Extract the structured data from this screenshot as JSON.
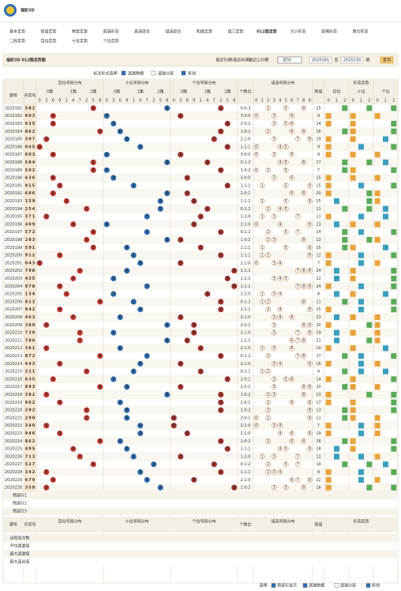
{
  "header": {
    "title": "福彩3D"
  },
  "nav": {
    "row1": [
      "基本走势",
      "和值走势",
      "跨度走势",
      "直选形态",
      "直选综合",
      "组选综合",
      "和尾走势",
      "组三走势",
      "012路走势",
      "大小形态",
      "奇偶形态",
      "质合形态"
    ],
    "row2": [
      "二码走势",
      "百位走势",
      "十位走势",
      "个位走势"
    ],
    "active": "012路走势"
  },
  "toolbar": {
    "title": "福彩3D 012路走势图",
    "links": [
      "最近50期",
      "最近80期",
      "最近120期"
    ],
    "select": "近50",
    "from": "2020181",
    "to_word": "至",
    "to": "2020230",
    "period_word": "期",
    "button": "查询"
  },
  "options": {
    "label": "标注形式选择:",
    "items": [
      "遗漏数据",
      "遗漏分层",
      "折线"
    ]
  },
  "table": {
    "headers": {
      "issue": "期号",
      "draw": "开奖号",
      "hundreds": "百位号码分布",
      "tens": "十位号码分布",
      "ones": "个位号码分布",
      "ratio": "个数比",
      "group": "组选号码分布",
      "sum": "和值",
      "form": "形态走势",
      "form_parts": [
        "百位",
        "十位",
        "个位"
      ]
    },
    "routes": [
      "0路",
      "1路",
      "2路"
    ],
    "digit_order": [
      0,
      3,
      6,
      9,
      1,
      4,
      7,
      2,
      5,
      8
    ],
    "group_digits": [
      0,
      1,
      2,
      3,
      4,
      5,
      6,
      7,
      8,
      9
    ],
    "form_digits": [
      0,
      1,
      2
    ],
    "hit_colors": [
      "#c4372f",
      "#2c6db3",
      "#a8322c"
    ],
    "form_colors": [
      "#e8a33c",
      "#3b9fbf",
      "#5aaa5a"
    ],
    "rows": [
      {
        "issue": "2020181",
        "digits": [
          5,
          8,
          2
        ],
        "ratio": "0:0:3",
        "sum": 15
      },
      {
        "issue": "2020182",
        "digits": [
          6,
          0,
          3
        ],
        "ratio": "3:0:0",
        "sum": 9
      },
      {
        "issue": "2020183",
        "digits": [
          6,
          3,
          5
        ],
        "ratio": "2:0:1",
        "sum": 14
      },
      {
        "issue": "2020184",
        "digits": [
          8,
          6,
          2
        ],
        "ratio": "1:0:2",
        "sum": 16
      },
      {
        "issue": "2020185",
        "digits": [
          3,
          9,
          7
        ],
        "ratio": "2:1:0",
        "sum": 19
      },
      {
        "issue": "2020186",
        "digits": [
          0,
          4,
          5
        ],
        "ratio": "1:1:1",
        "sum": 9
      },
      {
        "issue": "2020187",
        "digits": [
          6,
          0,
          3
        ],
        "ratio": "3:0:0",
        "sum": 9
      },
      {
        "issue": "2020188",
        "digits": [
          5,
          8,
          4
        ],
        "ratio": "0:1:2",
        "sum": 17
      },
      {
        "issue": "2020189",
        "digits": [
          5,
          0,
          2
        ],
        "ratio": "1:0:2",
        "sum": 7
      },
      {
        "issue": "2020190",
        "digits": [
          6,
          3,
          6
        ],
        "ratio": "3:0:0",
        "sum": 15
      },
      {
        "issue": "2020191",
        "digits": [
          9,
          1,
          5
        ],
        "ratio": "1:1:1",
        "sum": 15
      },
      {
        "issue": "2020192",
        "digits": [
          6,
          8,
          6
        ],
        "ratio": "2:0:1",
        "sum": 20
      },
      {
        "issue": "2020193",
        "digits": [
          1,
          5,
          9
        ],
        "ratio": "1:1:1",
        "sum": 15
      },
      {
        "issue": "2020194",
        "digits": [
          2,
          5,
          4
        ],
        "ratio": "0:1:2",
        "sum": 11
      },
      {
        "issue": "2020195",
        "digits": [
          3,
          7,
          1
        ],
        "ratio": "1:2:0",
        "sum": 11
      },
      {
        "issue": "2020196",
        "digits": [
          4,
          0,
          9
        ],
        "ratio": "2:1:0",
        "sum": 13
      },
      {
        "issue": "2020197",
        "digits": [
          5,
          7,
          2
        ],
        "ratio": "0:1:2",
        "sum": 14
      },
      {
        "issue": "2020198",
        "digits": [
          2,
          8,
          3
        ],
        "ratio": "1:0:2",
        "sum": 13
      },
      {
        "issue": "2020199",
        "digits": [
          5,
          9,
          1
        ],
        "ratio": "1:1:1",
        "sum": 15
      },
      {
        "issue": "2020200",
        "digits": [
          9,
          1,
          2
        ],
        "ratio": "1:1:1",
        "sum": 12
      },
      {
        "issue": "2020201",
        "digits": [
          0,
          4,
          3
        ],
        "ratio": "2:1:0",
        "sum": 7
      },
      {
        "issue": "2020202",
        "digits": [
          7,
          9,
          8
        ],
        "ratio": "1:1:1",
        "sum": 24
      },
      {
        "issue": "2020203",
        "digits": [
          4,
          3,
          5
        ],
        "ratio": "1:1:1",
        "sum": 12
      },
      {
        "issue": "2020204",
        "digits": [
          9,
          7,
          8
        ],
        "ratio": "1:1:1",
        "sum": 24
      },
      {
        "issue": "2020205",
        "digits": [
          1,
          3,
          4
        ],
        "ratio": "1:2:0",
        "sum": 8
      },
      {
        "issue": "2020206",
        "digits": [
          8,
          1,
          2
        ],
        "ratio": "0:1:2",
        "sum": 11
      },
      {
        "issue": "2020207",
        "digits": [
          9,
          4,
          2
        ],
        "ratio": "1:1:1",
        "sum": 15
      },
      {
        "issue": "2020208",
        "digits": [
          4,
          6,
          3
        ],
        "ratio": "2:1:0",
        "sum": 13
      },
      {
        "issue": "2020209",
        "digits": [
          3,
          8,
          9
        ],
        "ratio": "2:0:1",
        "sum": 20
      },
      {
        "issue": "2020210",
        "digits": [
          7,
          3,
          9
        ],
        "ratio": "2:1:0",
        "sum": 19
      },
      {
        "issue": "2020211",
        "digits": [
          7,
          8,
          6
        ],
        "ratio": "1:1:1",
        "sum": 21
      },
      {
        "issue": "2020212",
        "digits": [
          3,
          6,
          1
        ],
        "ratio": "2:1:0",
        "sum": 10
      },
      {
        "issue": "2020213",
        "digits": [
          8,
          7,
          2
        ],
        "ratio": "0:1:2",
        "sum": 17
      },
      {
        "issue": "2020214",
        "digits": [
          9,
          4,
          3
        ],
        "ratio": "2:1:0",
        "sum": 16
      },
      {
        "issue": "2020215",
        "digits": [
          2,
          1,
          1
        ],
        "ratio": "0:2:1",
        "sum": 4
      },
      {
        "issue": "2020216",
        "digits": [
          6,
          3,
          5
        ],
        "ratio": "2:0:1",
        "sum": 14
      },
      {
        "issue": "2020217",
        "digits": [
          8,
          9,
          3
        ],
        "ratio": "2:0:1",
        "sum": 20
      },
      {
        "issue": "2020218",
        "digits": [
          3,
          8,
          2
        ],
        "ratio": "1:0:2",
        "sum": 13
      },
      {
        "issue": "2020219",
        "digits": [
          9,
          6,
          2
        ],
        "ratio": "2:0:1",
        "sum": 17
      },
      {
        "issue": "2020220",
        "digits": [
          2,
          9,
          2
        ],
        "ratio": "1:0:2",
        "sum": 13
      },
      {
        "issue": "2020221",
        "digits": [
          2,
          9,
          0
        ],
        "ratio": "2:0:1",
        "sum": 11
      },
      {
        "issue": "2020222",
        "digits": [
          3,
          4,
          0
        ],
        "ratio": "2:1:0",
        "sum": 7
      },
      {
        "issue": "2020223",
        "digits": [
          9,
          4,
          6
        ],
        "ratio": "2:1:0",
        "sum": 19
      },
      {
        "issue": "2020224",
        "digits": [
          8,
          6,
          2
        ],
        "ratio": "1:0:2",
        "sum": 16
      },
      {
        "issue": "2020225",
        "digits": [
          4,
          9,
          5
        ],
        "ratio": "1:1:1",
        "sum": 18
      },
      {
        "issue": "2020226",
        "digits": [
          7,
          1,
          3
        ],
        "ratio": "1:2:0",
        "sum": 11
      },
      {
        "issue": "2020227",
        "digits": [
          5,
          2,
          7
        ],
        "ratio": "0:1:2",
        "sum": 14
      },
      {
        "issue": "2020228",
        "digits": [
          3,
          4,
          2
        ],
        "ratio": "1:1:1",
        "sum": 9
      },
      {
        "issue": "2020229",
        "digits": [
          6,
          7,
          9
        ],
        "ratio": "2:1:0",
        "sum": 22
      },
      {
        "issue": "2020230",
        "digits": [
          3,
          5,
          8
        ],
        "ratio": "1:0:2",
        "sum": 16
      }
    ],
    "preselect": [
      "预选行1",
      "预选行2",
      "预选行3"
    ],
    "stats": [
      "出现总次数",
      "平均遗漏值",
      "最大遗漏值",
      "最大连出值"
    ]
  },
  "footer": {
    "label": "选择:",
    "items": [
      "预选行显示",
      "遗漏数据",
      "遗漏分层",
      "折线"
    ]
  }
}
